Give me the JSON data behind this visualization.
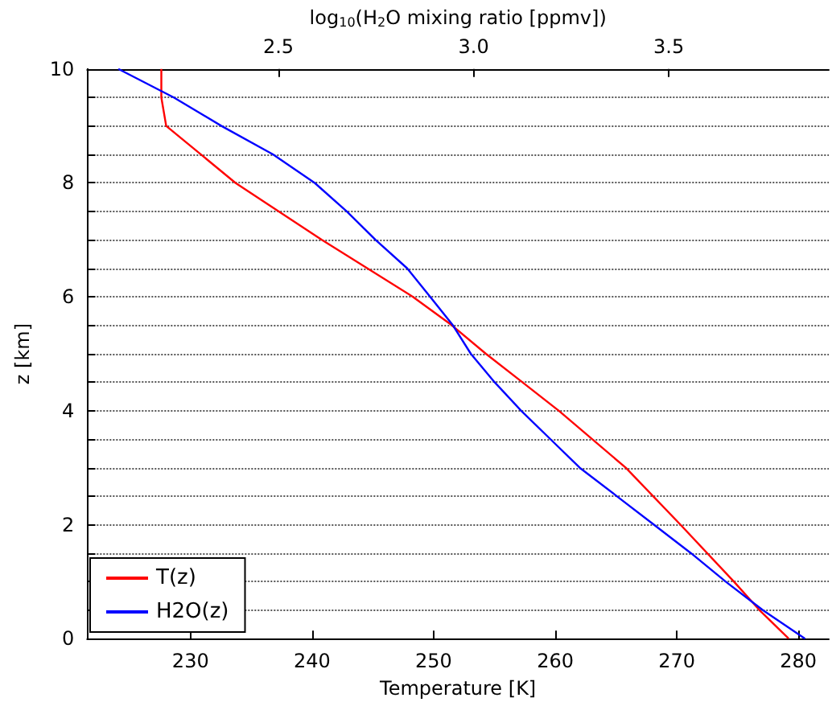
{
  "chart_data": {
    "type": "line",
    "xlabel": "Temperature [K]",
    "ylabel": "z [km]",
    "x2label": "log$_{10}$(H$_{2}$O mixing ratio [ppmv])",
    "xlim": [
      221.5,
      282.5
    ],
    "xticks": [
      230,
      240,
      250,
      260,
      270,
      280
    ],
    "x2lim": [
      2.01,
      3.91
    ],
    "x2ticks": [
      2.5,
      {
        "value": 3,
        "label": "3.0"
      },
      3.5
    ],
    "ylim": [
      0,
      10
    ],
    "yticks": [
      0,
      {
        "value": 0.5,
        "label": null
      },
      {
        "value": 1,
        "label": null
      },
      {
        "value": 1.5,
        "label": null
      },
      2,
      {
        "value": 2.5,
        "label": null
      },
      {
        "value": 3,
        "label": null
      },
      {
        "value": 3.5,
        "label": null
      },
      4,
      {
        "value": 4.5,
        "label": null
      },
      {
        "value": 5,
        "label": null
      },
      {
        "value": 5.5,
        "label": null
      },
      6,
      {
        "value": 6.5,
        "label": null
      },
      {
        "value": 7,
        "label": null
      },
      {
        "value": 7.5,
        "label": null
      },
      8,
      {
        "value": 8.5,
        "label": null
      },
      {
        "value": 9,
        "label": null
      },
      {
        "value": 9.5,
        "label": null
      },
      10
    ],
    "grid": "y",
    "legend": "bottom left",
    "line_style": "solid",
    "marker": "none",
    "series": [
      {
        "name": "T(z)",
        "color": "#ff0000",
        "x": [
          279.2,
          276.8,
          274.7,
          270.3,
          265.8,
          260.3,
          257.3,
          254.3,
          251.5,
          248.3,
          240.8,
          233.7,
          228.0,
          227.6,
          227.6
        ],
        "values": [
          0,
          0.5,
          1,
          2,
          3,
          4,
          4.5,
          5,
          5.5,
          6,
          7,
          8,
          9,
          9.5,
          10
        ]
      },
      {
        "name": "H2O(z)",
        "color": "#0000ff",
        "axis": "x2",
        "x": [
          3.849,
          3.741,
          3.646,
          3.557,
          3.462,
          3.367,
          3.272,
          3.197,
          3.122,
          3.054,
          2.993,
          2.947,
          2.889,
          2.83,
          2.749,
          2.675,
          2.593,
          2.486,
          2.354,
          2.232,
          2.09
        ],
        "values": [
          0,
          0.5,
          1,
          1.5,
          2,
          2.5,
          3,
          3.5,
          4,
          4.5,
          5,
          5.5,
          6,
          6.5,
          7,
          7.5,
          8,
          8.5,
          9,
          9.5,
          10
        ]
      }
    ]
  }
}
